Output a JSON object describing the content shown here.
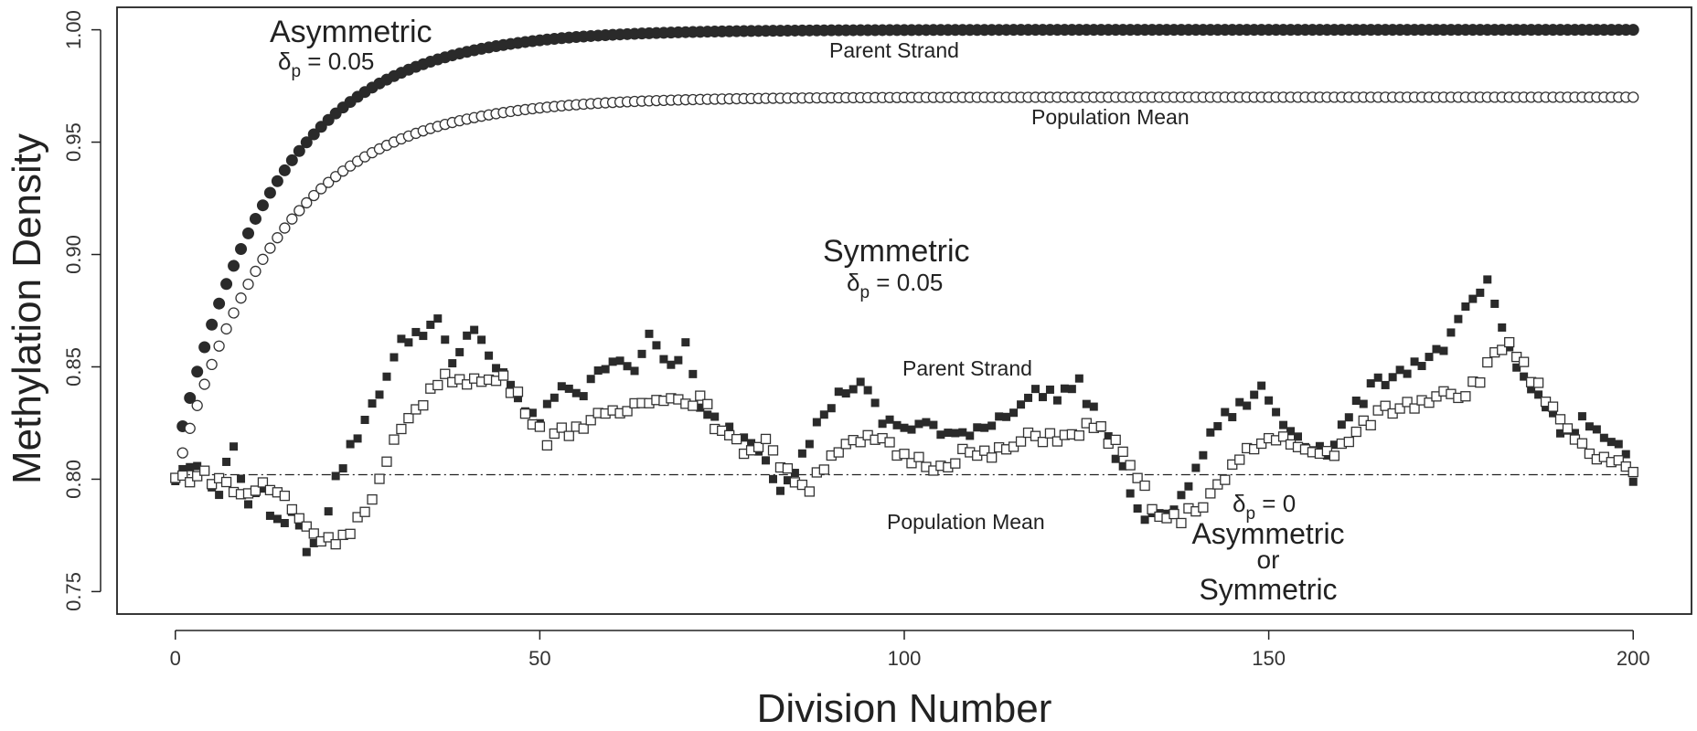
{
  "chart_data": {
    "type": "scatter",
    "xlabel": "Division Number",
    "ylabel": "Methylation Density",
    "xlim": [
      -8,
      208
    ],
    "ylim": [
      0.74,
      1.01
    ],
    "x_ticks": [
      "0",
      "50",
      "100",
      "150",
      "200"
    ],
    "x_tick_values": [
      0,
      50,
      100,
      150,
      200
    ],
    "y_ticks": [
      "0.75",
      "0.80",
      "0.85",
      "0.90",
      "0.95",
      "1.00"
    ],
    "y_tick_values": [
      0.75,
      0.8,
      0.85,
      0.9,
      0.95,
      1.0
    ],
    "grid": false,
    "legend": "none",
    "annotations": {
      "asym_title": "Asymmetric",
      "asym_delta_symbol": "δ",
      "asym_delta_sub": "p",
      "asym_delta_value": " = 0.05",
      "asym_parent": "Parent Strand",
      "asym_mean": "Population Mean",
      "sym_title": "Symmetric",
      "sym_delta_symbol": "δ",
      "sym_delta_sub": "p",
      "sym_delta_value": " = 0.05",
      "sym_parent": "Parent Strand",
      "sym_mean": "Population Mean",
      "zero_delta_symbol": "δ",
      "zero_delta_sub": "p",
      "zero_delta_value": " = 0",
      "zero_line1": "Asymmetric",
      "zero_line2": "or",
      "zero_line3": "Symmetric"
    },
    "reference_line": {
      "y": 0.802,
      "style": "dash-dot"
    },
    "series": [
      {
        "marker": "filled-circle",
        "model": "asymmetric, delta=0.05, parent strand",
        "formula": "y = 1.00 - 0.19 * exp(-x / 13.5)",
        "x_range": [
          1,
          200,
          1
        ]
      },
      {
        "marker": "open-circle",
        "model": "asymmetric, delta=0.05, population mean",
        "formula": "y = 0.97 - 0.17 * exp(-x / 14)",
        "x_range": [
          1,
          200,
          1
        ]
      },
      {
        "marker": "filled-square",
        "model": "symmetric / delta=0, parent strand",
        "key_points": [
          [
            0,
            0.8
          ],
          [
            2,
            0.806
          ],
          [
            4,
            0.803
          ],
          [
            6,
            0.795
          ],
          [
            8,
            0.815
          ],
          [
            10,
            0.79
          ],
          [
            12,
            0.793
          ],
          [
            14,
            0.78
          ],
          [
            16,
            0.785
          ],
          [
            18,
            0.77
          ],
          [
            20,
            0.775
          ],
          [
            22,
            0.8
          ],
          [
            25,
            0.82
          ],
          [
            28,
            0.84
          ],
          [
            31,
            0.86
          ],
          [
            33,
            0.865
          ],
          [
            36,
            0.87
          ],
          [
            38,
            0.85
          ],
          [
            41,
            0.868
          ],
          [
            44,
            0.85
          ],
          [
            47,
            0.835
          ],
          [
            50,
            0.825
          ],
          [
            53,
            0.843
          ],
          [
            56,
            0.838
          ],
          [
            60,
            0.855
          ],
          [
            63,
            0.85
          ],
          [
            65,
            0.862
          ],
          [
            68,
            0.85
          ],
          [
            70,
            0.86
          ],
          [
            72,
            0.83
          ],
          [
            76,
            0.822
          ],
          [
            80,
            0.815
          ],
          [
            83,
            0.797
          ],
          [
            86,
            0.81
          ],
          [
            89,
            0.83
          ],
          [
            92,
            0.84
          ],
          [
            94,
            0.843
          ],
          [
            97,
            0.826
          ],
          [
            100,
            0.823
          ],
          [
            103,
            0.825
          ],
          [
            106,
            0.818
          ],
          [
            109,
            0.822
          ],
          [
            112,
            0.825
          ],
          [
            115,
            0.832
          ],
          [
            118,
            0.838
          ],
          [
            121,
            0.838
          ],
          [
            124,
            0.842
          ],
          [
            127,
            0.825
          ],
          [
            130,
            0.803
          ],
          [
            133,
            0.78
          ],
          [
            135,
            0.785
          ],
          [
            138,
            0.79
          ],
          [
            140,
            0.805
          ],
          [
            143,
            0.825
          ],
          [
            146,
            0.832
          ],
          [
            149,
            0.84
          ],
          [
            152,
            0.825
          ],
          [
            155,
            0.817
          ],
          [
            158,
            0.812
          ],
          [
            161,
            0.828
          ],
          [
            164,
            0.84
          ],
          [
            167,
            0.847
          ],
          [
            170,
            0.851
          ],
          [
            173,
            0.856
          ],
          [
            175,
            0.863
          ],
          [
            178,
            0.88
          ],
          [
            180,
            0.886
          ],
          [
            182,
            0.865
          ],
          [
            184,
            0.85
          ],
          [
            186,
            0.84
          ],
          [
            188,
            0.835
          ],
          [
            190,
            0.82
          ],
          [
            193,
            0.825
          ],
          [
            196,
            0.82
          ],
          [
            199,
            0.81
          ],
          [
            200,
            0.797
          ]
        ]
      },
      {
        "marker": "open-square",
        "model": "symmetric / delta=0, population mean",
        "key_points": [
          [
            0,
            0.8
          ],
          [
            3,
            0.802
          ],
          [
            6,
            0.8
          ],
          [
            9,
            0.793
          ],
          [
            12,
            0.797
          ],
          [
            15,
            0.792
          ],
          [
            18,
            0.779
          ],
          [
            21,
            0.772
          ],
          [
            24,
            0.778
          ],
          [
            27,
            0.79
          ],
          [
            30,
            0.815
          ],
          [
            33,
            0.832
          ],
          [
            36,
            0.843
          ],
          [
            39,
            0.846
          ],
          [
            42,
            0.843
          ],
          [
            45,
            0.845
          ],
          [
            48,
            0.832
          ],
          [
            51,
            0.818
          ],
          [
            54,
            0.822
          ],
          [
            57,
            0.826
          ],
          [
            60,
            0.828
          ],
          [
            63,
            0.833
          ],
          [
            66,
            0.838
          ],
          [
            69,
            0.835
          ],
          [
            72,
            0.836
          ],
          [
            75,
            0.82
          ],
          [
            78,
            0.813
          ],
          [
            81,
            0.818
          ],
          [
            84,
            0.802
          ],
          [
            87,
            0.797
          ],
          [
            90,
            0.812
          ],
          [
            93,
            0.815
          ],
          [
            96,
            0.818
          ],
          [
            99,
            0.812
          ],
          [
            102,
            0.808
          ],
          [
            105,
            0.806
          ],
          [
            108,
            0.812
          ],
          [
            111,
            0.81
          ],
          [
            114,
            0.813
          ],
          [
            117,
            0.818
          ],
          [
            120,
            0.82
          ],
          [
            123,
            0.818
          ],
          [
            126,
            0.825
          ],
          [
            129,
            0.815
          ],
          [
            132,
            0.8
          ],
          [
            135,
            0.783
          ],
          [
            138,
            0.782
          ],
          [
            141,
            0.79
          ],
          [
            144,
            0.8
          ],
          [
            147,
            0.812
          ],
          [
            150,
            0.818
          ],
          [
            153,
            0.818
          ],
          [
            156,
            0.81
          ],
          [
            159,
            0.812
          ],
          [
            162,
            0.82
          ],
          [
            165,
            0.83
          ],
          [
            168,
            0.832
          ],
          [
            171,
            0.835
          ],
          [
            174,
            0.84
          ],
          [
            177,
            0.838
          ],
          [
            180,
            0.85
          ],
          [
            183,
            0.862
          ],
          [
            186,
            0.845
          ],
          [
            189,
            0.83
          ],
          [
            192,
            0.816
          ],
          [
            195,
            0.81
          ],
          [
            198,
            0.806
          ],
          [
            200,
            0.802
          ]
        ]
      }
    ]
  }
}
